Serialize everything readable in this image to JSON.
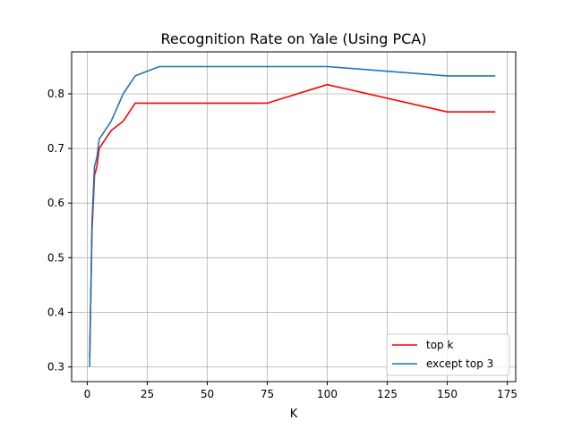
{
  "chart_data": {
    "type": "line",
    "title": "Recognition Rate on Yale (Using PCA)",
    "xlabel": "K",
    "ylabel": "",
    "xlim": [
      -6.5,
      178.5
    ],
    "ylim": [
      0.273,
      0.877
    ],
    "xticks": [
      0,
      25,
      50,
      75,
      100,
      125,
      150,
      175
    ],
    "yticks": [
      0.3,
      0.4,
      0.5,
      0.6,
      0.7,
      0.8
    ],
    "ytick_labels": [
      "0.3",
      "0.4",
      "0.5",
      "0.6",
      "0.7",
      "0.8"
    ],
    "grid": true,
    "legend_position": "lower-right",
    "series": [
      {
        "name": "top k",
        "color": "#ff0000",
        "x": [
          1,
          2,
          3,
          4,
          5,
          10,
          15,
          20,
          30,
          50,
          75,
          100,
          150,
          170
        ],
        "y": [
          0.317,
          0.55,
          0.65,
          0.667,
          0.7,
          0.733,
          0.75,
          0.783,
          0.783,
          0.783,
          0.783,
          0.817,
          0.767,
          0.767
        ]
      },
      {
        "name": "except top 3",
        "color": "#1f77b4",
        "x": [
          1,
          2,
          3,
          4,
          5,
          10,
          15,
          20,
          30,
          50,
          75,
          100,
          150,
          170
        ],
        "y": [
          0.3,
          0.567,
          0.667,
          0.683,
          0.717,
          0.75,
          0.8,
          0.833,
          0.85,
          0.85,
          0.85,
          0.85,
          0.833,
          0.833
        ]
      }
    ]
  }
}
